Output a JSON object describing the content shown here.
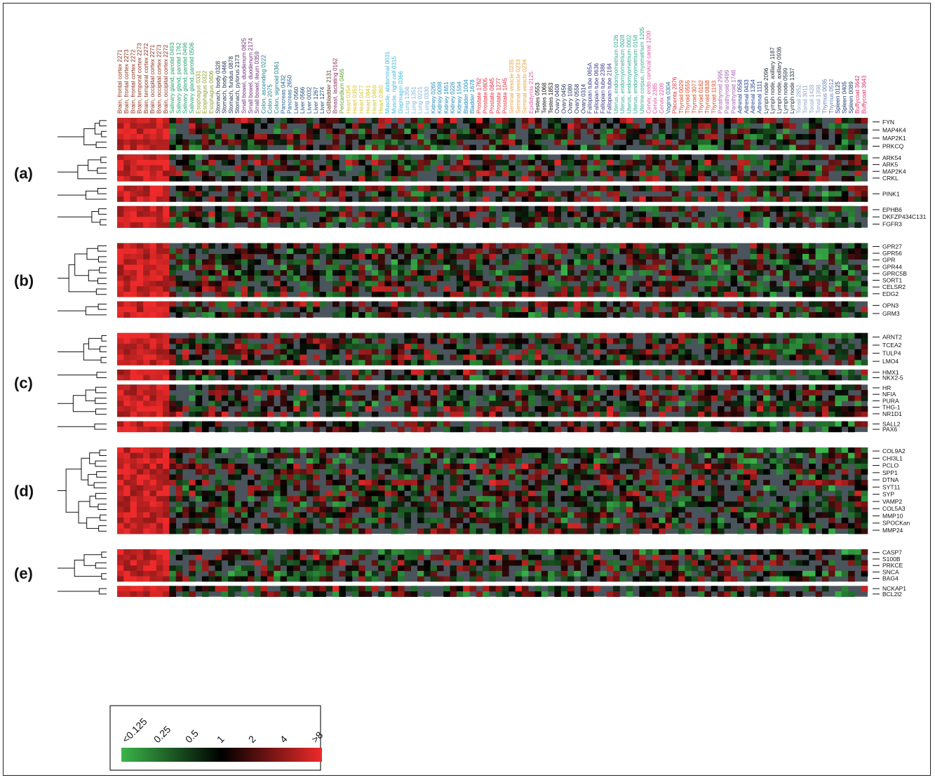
{
  "samples": [
    {
      "label": "Brain, frontal cortex 2271",
      "tissue": "brain"
    },
    {
      "label": "Brain, frontal cortex 2273",
      "tissue": "brain"
    },
    {
      "label": "Brain, frontal cortex 2272",
      "tissue": "brain"
    },
    {
      "label": "Brain, temporal cortex 2273",
      "tissue": "brain"
    },
    {
      "label": "Brain, temporal cortex 2272",
      "tissue": "brain"
    },
    {
      "label": "Brain, occipital cortex 2271",
      "tissue": "brain"
    },
    {
      "label": "Brain, occipital cortex 2273",
      "tissue": "brain"
    },
    {
      "label": "Brain, occipital cortex 2272",
      "tissue": "brain"
    },
    {
      "label": "Salivary gland, parotid 0493",
      "tissue": "salivary"
    },
    {
      "label": "Salivary gland, parotid 1762",
      "tissue": "salivary"
    },
    {
      "label": "Salivary gland, parotid 0496",
      "tissue": "salivary"
    },
    {
      "label": "Salivary gland, parotid 0506",
      "tissue": "salivary"
    },
    {
      "label": "Esophagus 0331",
      "tissue": "esophagus"
    },
    {
      "label": "Esophagus 0322",
      "tissue": "esophagus"
    },
    {
      "label": "Esophagus 0406",
      "tissue": "esophagus"
    },
    {
      "label": "Stomach, body 0328",
      "tissue": "stomach"
    },
    {
      "label": "Stomach, body 0468",
      "tissue": "stomach"
    },
    {
      "label": "Stomach, fundus 0878",
      "tissue": "stomach"
    },
    {
      "label": "Stomach, pylorus 2173",
      "tissue": "stomach"
    },
    {
      "label": "Small bowel, duodenum 0825",
      "tissue": "bowel"
    },
    {
      "label": "Small bowel, duodenum 2174",
      "tissue": "bowel"
    },
    {
      "label": "Small bowel, ileum 0359",
      "tissue": "bowel"
    },
    {
      "label": "Colon, ascending 0222",
      "tissue": "colon"
    },
    {
      "label": "Colon 2075",
      "tissue": "colon"
    },
    {
      "label": "Colon, sigmoid 0361",
      "tissue": "colon"
    },
    {
      "label": "Pancreas 0432",
      "tissue": "pancreas"
    },
    {
      "label": "Pancreas 2650",
      "tissue": "pancreas"
    },
    {
      "label": "Liver 0560",
      "tissue": "liver"
    },
    {
      "label": "Liver 0566",
      "tissue": "liver"
    },
    {
      "label": "Liver 0032",
      "tissue": "liver"
    },
    {
      "label": "Liver 1267",
      "tissue": "liver"
    },
    {
      "label": "Liver 1274",
      "tissue": "liver"
    },
    {
      "label": "Gallbladder 2131",
      "tissue": "gallbladder"
    },
    {
      "label": "Breast, lactating 0162",
      "tissue": "breast"
    },
    {
      "label": "Pericardium 0465",
      "tissue": "pericardium"
    },
    {
      "label": "Heart 0354",
      "tissue": "heart"
    },
    {
      "label": "Heart 0359",
      "tissue": "heart"
    },
    {
      "label": "Heart 0477",
      "tissue": "heart"
    },
    {
      "label": "Heart 0841",
      "tissue": "heart"
    },
    {
      "label": "Heart 0469",
      "tissue": "heart"
    },
    {
      "label": "Heart 0360",
      "tissue": "heart"
    },
    {
      "label": "Muscle, abdominal 0031",
      "tissue": "muscle"
    },
    {
      "label": "Muscle, right calf 0315",
      "tissue": "muscle"
    },
    {
      "label": "Diaphragm 0366",
      "tissue": "muscle"
    },
    {
      "label": "Lung 1356",
      "tissue": "lung"
    },
    {
      "label": "Lung 1351",
      "tissue": "lung"
    },
    {
      "label": "Lung 0221",
      "tissue": "lung"
    },
    {
      "label": "Lung 0330",
      "tissue": "lung"
    },
    {
      "label": "Kidney 0265",
      "tissue": "kidney"
    },
    {
      "label": "Kidney 0098",
      "tissue": "kidney"
    },
    {
      "label": "Kidney 1651",
      "tissue": "kidney"
    },
    {
      "label": "Kidney 0226",
      "tissue": "kidney"
    },
    {
      "label": "Kidney 1594",
      "tissue": "kidney"
    },
    {
      "label": "Bladder 1004",
      "tissue": "kidney"
    },
    {
      "label": "Bladder 1678",
      "tissue": "kidney"
    },
    {
      "label": "Prostate 1762",
      "tissue": "prostate"
    },
    {
      "label": "Prostate 0805",
      "tissue": "prostate"
    },
    {
      "label": "Prostate 0845",
      "tissue": "prostate"
    },
    {
      "label": "Prostate 1277",
      "tissue": "prostate"
    },
    {
      "label": "Prostate 1045",
      "tissue": "prostate"
    },
    {
      "label": "Seminal vesicle 0235",
      "tissue": "seminal"
    },
    {
      "label": "Seminal vesicle 0233",
      "tissue": "seminal"
    },
    {
      "label": "Seminal vesicle 0234",
      "tissue": "seminal"
    },
    {
      "label": "Epididymis 2125",
      "tissue": "epididymis"
    },
    {
      "label": "Testes 0553",
      "tissue": "testes"
    },
    {
      "label": "Testes 1068",
      "tissue": "testes"
    },
    {
      "label": "Testes 1853",
      "tissue": "testes"
    },
    {
      "label": "Ovary 0408",
      "tissue": "ovary"
    },
    {
      "label": "Ovary 0456",
      "tissue": "ovary"
    },
    {
      "label": "Ovary 1080",
      "tissue": "ovary"
    },
    {
      "label": "Ovary 0558",
      "tissue": "ovary"
    },
    {
      "label": "Ovary 0314",
      "tissue": "ovary"
    },
    {
      "label": "Fallopian tube 065A",
      "tissue": "fallopian"
    },
    {
      "label": "Fallopian tube 0636",
      "tissue": "fallopian"
    },
    {
      "label": "Fallopian tube 2386",
      "tissue": "fallopian"
    },
    {
      "label": "Fallopian tube 2184",
      "tissue": "fallopian"
    },
    {
      "label": "Uterus, endomyometrium 0126",
      "tissue": "uterus"
    },
    {
      "label": "Uterus, endomyometrium 0028",
      "tissue": "uterus"
    },
    {
      "label": "Uterus, endomyometrium 0002",
      "tissue": "uterus"
    },
    {
      "label": "Uterus, endomyometrium 0158",
      "tissue": "uterus"
    },
    {
      "label": "Uterine corpus, myometrium 1205",
      "tissue": "uterus"
    },
    {
      "label": "Cervix, endo cervical canal 1200",
      "tissue": "cervix"
    },
    {
      "label": "Cervix 2385",
      "tissue": "cervix"
    },
    {
      "label": "Cervix 2209",
      "tissue": "cervix"
    },
    {
      "label": "Vagina 0304",
      "tissue": "vagina"
    },
    {
      "label": "Placenta 2876",
      "tissue": "placenta"
    },
    {
      "label": "Thyroid 0029",
      "tissue": "thyroid"
    },
    {
      "label": "Thyroid 0555",
      "tissue": "thyroid"
    },
    {
      "label": "Thyroid 3077",
      "tissue": "thyroid"
    },
    {
      "label": "Thyroid 0182",
      "tissue": "thyroid"
    },
    {
      "label": "Thyroid 0838",
      "tissue": "thyroid"
    },
    {
      "label": "Thyroid 1193",
      "tissue": "thyroid"
    },
    {
      "label": "Parathyroid 2995",
      "tissue": "parathyroid"
    },
    {
      "label": "Parathyroid 0499",
      "tissue": "parathyroid"
    },
    {
      "label": "Parathyroid 1748",
      "tissue": "parathyroid"
    },
    {
      "label": "Adrenal 0558",
      "tissue": "adrenal"
    },
    {
      "label": "Adrenal 0433",
      "tissue": "adrenal"
    },
    {
      "label": "Adrenal 1354",
      "tissue": "adrenal"
    },
    {
      "label": "Adrenal 1111",
      "tissue": "adrenal"
    },
    {
      "label": "Lymph node 2096",
      "tissue": "lymph"
    },
    {
      "label": "Lymph node, axillary 1187",
      "tissue": "lymph"
    },
    {
      "label": "Lymph node, axillary 0936",
      "tissue": "lymph"
    },
    {
      "label": "Lymph node 0599",
      "tissue": "lymph"
    },
    {
      "label": "Lymph node 1337",
      "tissue": "lymph"
    },
    {
      "label": "Tonsil 2852",
      "tissue": "tonsil"
    },
    {
      "label": "Tonsil 3011",
      "tissue": "tonsil"
    },
    {
      "label": "Tonsil 1428",
      "tissue": "tonsil"
    },
    {
      "label": "Tonsil 1398",
      "tissue": "tonsil"
    },
    {
      "label": "Thymus 0035",
      "tissue": "thymus"
    },
    {
      "label": "Thymus 0512",
      "tissue": "thymus"
    },
    {
      "label": "Spleen 0125",
      "tissue": "spleen"
    },
    {
      "label": "Spleen 0405",
      "tissue": "spleen"
    },
    {
      "label": "Spleen 0089",
      "tissue": "spleen"
    },
    {
      "label": "Buffycoat 3642",
      "tissue": "buffycoat"
    },
    {
      "label": "Buffycoat 3643",
      "tissue": "buffycoat"
    }
  ],
  "tissue_colors": {
    "brain": "#8b2d1a",
    "salivary": "#1f9e6a",
    "esophagus": "#8a9a2a",
    "stomach": "#1a2a4a",
    "bowel": "#6a2a7a",
    "colon": "#1a7a8a",
    "pancreas": "#1a5a8a",
    "liver": "#1a4a7a",
    "gallbladder": "#5a3a2a",
    "breast": "#8a2a5a",
    "pericardium": "#5a9a2a",
    "heart": "#d6c22a",
    "muscle": "#3ab8d8",
    "lung": "#7ab0d8",
    "kidney": "#1a8ab8",
    "prostate": "#e0283a",
    "seminal": "#e8a03a",
    "epididymis": "#d860a0",
    "testes": "#111111",
    "ovary": "#1a2a5a",
    "fallopian": "#3a3a8a",
    "uterus": "#2aa890",
    "cervix": "#e050a0",
    "vagina": "#1a6a8a",
    "placenta": "#d8303a",
    "thyroid": "#e0401a",
    "parathyroid": "#a05ab0",
    "adrenal": "#1a3a8a",
    "lymph": "#1a2a3a",
    "tonsil": "#8aa0c8",
    "thymus": "#5a7ab8",
    "spleen": "#1a3a6a",
    "buffycoat": "#e02a6a"
  },
  "panels": [
    {
      "label": "(a)",
      "clusters": [
        {
          "rows": 6,
          "genes": [
            "FYN",
            "MAP4K4",
            "MAP2K1",
            "PRKCQ"
          ]
        },
        {
          "rows": 5,
          "genes": [
            "ARK54",
            "ARK5",
            "MAP2K4",
            "CRKL"
          ]
        },
        {
          "rows": 3,
          "genes": [
            "PINK1"
          ]
        },
        {
          "rows": 4,
          "genes": [
            "EPHB6",
            "DKFZP434C131",
            "FGFR3"
          ]
        }
      ]
    },
    {
      "label": "(b)",
      "clusters": [
        {
          "rows": 10,
          "genes": [
            "GPR27",
            "GPR56",
            "GPR",
            "GPR44",
            "GPRC5B",
            "SORT1",
            "CELSR2",
            "EDG2"
          ]
        },
        {
          "rows": 3,
          "genes": [
            "OPN3",
            "GRM3"
          ]
        }
      ]
    },
    {
      "label": "(c)",
      "clusters": [
        {
          "rows": 6,
          "genes": [
            "ARNT2",
            "TCEA2",
            "TULP4",
            "LMO4"
          ]
        },
        {
          "rows": 2,
          "genes": [
            "HMX1",
            "NKX2-5"
          ]
        },
        {
          "rows": 6,
          "genes": [
            "HR",
            "NFIA",
            "PURA",
            "THG-1",
            "NR1D1"
          ]
        },
        {
          "rows": 2,
          "genes": [
            "SALL2",
            "PAX6"
          ]
        }
      ]
    },
    {
      "label": "(d)",
      "clusters": [
        {
          "rows": 16,
          "genes": [
            "COL9A2",
            "CHI3L1",
            "PCLO",
            "SPP1",
            "DTNA",
            "SYT11",
            "SYP",
            "VAMP2",
            "COL5A3",
            "MMP10",
            "SPOCKan",
            "MMP24"
          ]
        }
      ]
    },
    {
      "label": "(e)",
      "clusters": [
        {
          "rows": 6,
          "genes": [
            "CASP7",
            "S100B",
            "PRKCE",
            "SNCA",
            "BAG4"
          ]
        },
        {
          "rows": 2,
          "genes": [
            "NCKAP1",
            "BCL2l2"
          ]
        }
      ]
    }
  ],
  "legend": {
    "ticks": [
      "<0.125",
      "0.25",
      "0.5",
      "1",
      "2",
      "4",
      ">8"
    ],
    "colors": {
      "low": "#3ab54a",
      "mid": "#000000",
      "high": "#ee2a2a",
      "missing": "#4a545c"
    }
  }
}
